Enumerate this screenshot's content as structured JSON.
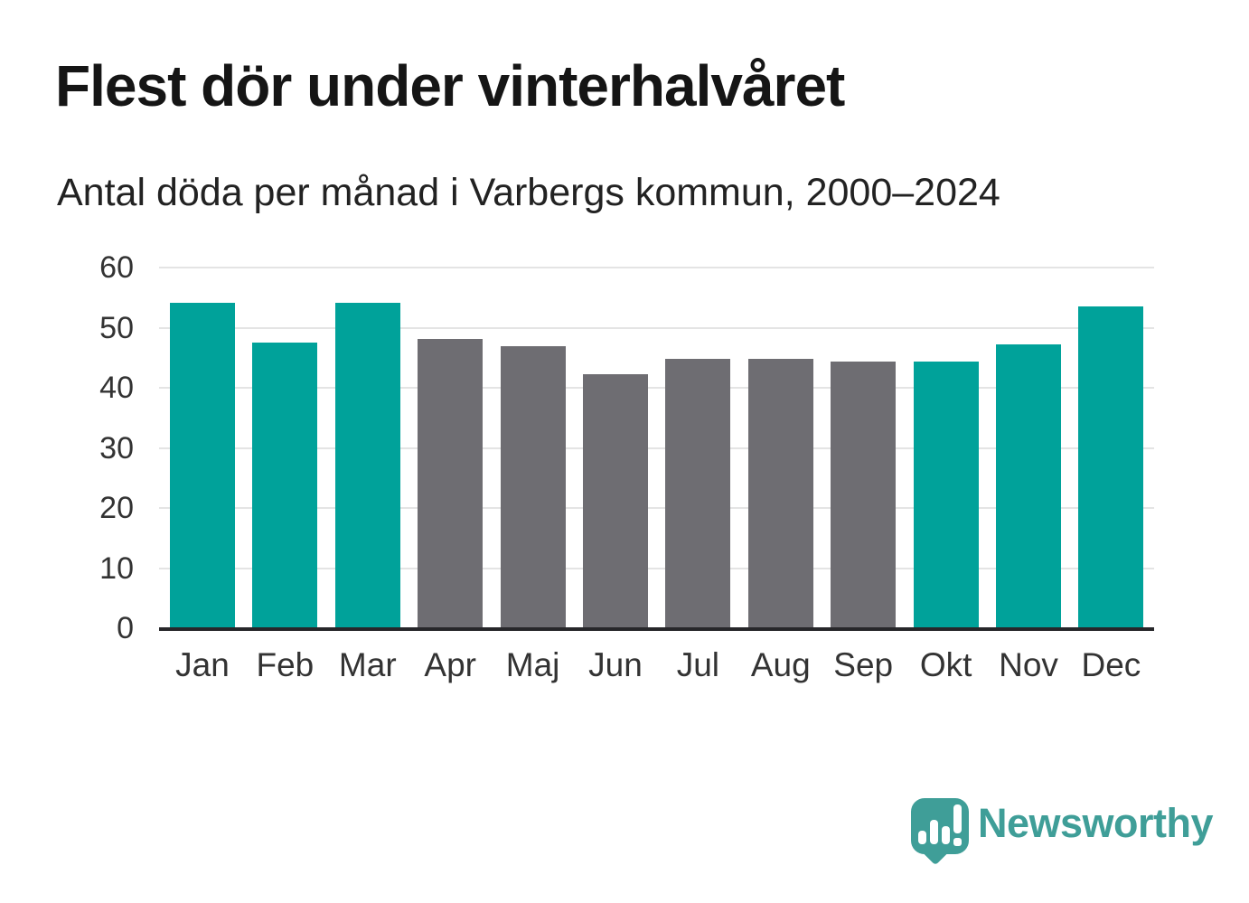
{
  "chart_data": {
    "type": "bar",
    "title": "Flest dör under vinterhalvåret",
    "subtitle": "Antal döda per månad i Varbergs kommun, 2000–2024",
    "categories": [
      "Jan",
      "Feb",
      "Mar",
      "Apr",
      "Maj",
      "Jun",
      "Jul",
      "Aug",
      "Sep",
      "Okt",
      "Nov",
      "Dec"
    ],
    "values": [
      54.1,
      47.5,
      54.2,
      48.1,
      46.9,
      42.3,
      44.8,
      44.8,
      44.4,
      44.4,
      47.2,
      53.5
    ],
    "groups": [
      "winter",
      "winter",
      "winter",
      "summer",
      "summer",
      "summer",
      "summer",
      "summer",
      "summer",
      "winter",
      "winter",
      "winter"
    ],
    "colors": {
      "winter": "#00a29a",
      "summer": "#6e6d72"
    },
    "xlabel": "",
    "ylabel": "",
    "ylim": [
      0,
      60
    ],
    "yticks": [
      0,
      10,
      20,
      30,
      40,
      50,
      60
    ],
    "grid": true,
    "legend": false,
    "gridline_color": "#e4e4e4",
    "axis_color": "#27272a"
  },
  "branding": {
    "logo_text": "Newsworthy",
    "logo_color": "#3f9e98",
    "logo_icon": "speech-bubble-with-bar-chart-and-exclamation"
  }
}
